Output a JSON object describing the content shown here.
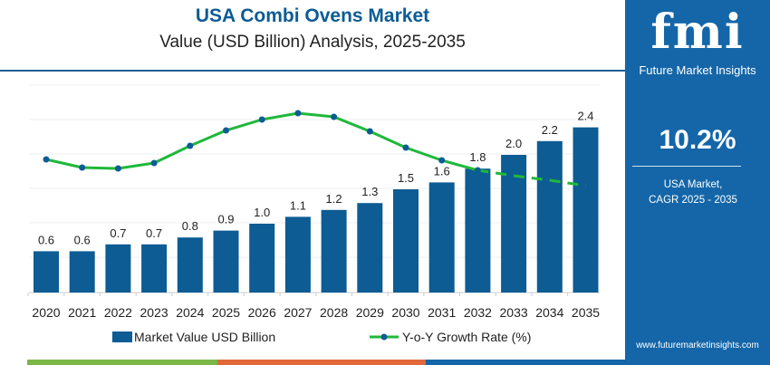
{
  "title": "USA Combi Ovens Market",
  "subtitle": "Value (USD Billion) Analysis, 2025-2035",
  "sidebar": {
    "logo_text": "fmi",
    "brand": "Future Market Insights",
    "cagr": "10.2%",
    "market_label": "USA Market,",
    "cagr_label": "CAGR 2025 - 2035",
    "url": "www.futuremarketinsights.com"
  },
  "colors": {
    "bar": "#0d5c94",
    "line": "#1fb83a",
    "marker": "#0d5c94",
    "sidebar": "#1466a8"
  },
  "chart_data": {
    "type": "bar",
    "categories": [
      "2020",
      "2021",
      "2022",
      "2023",
      "2024",
      "2025",
      "2026",
      "2027",
      "2028",
      "2029",
      "2030",
      "2031",
      "2032",
      "2033",
      "2034",
      "2035"
    ],
    "series": [
      {
        "name": "Market Value USD Billion",
        "type": "bar",
        "values": [
          0.6,
          0.6,
          0.7,
          0.7,
          0.8,
          0.9,
          1.0,
          1.1,
          1.2,
          1.3,
          1.5,
          1.6,
          1.8,
          2.0,
          2.2,
          2.4
        ],
        "labels": [
          "0.6",
          "0.6",
          "0.7",
          "0.7",
          "0.8",
          "0.9",
          "1.0",
          "1.1",
          "1.2",
          "1.3",
          "1.5",
          "1.6",
          "1.8",
          "2.0",
          "2.2",
          "2.4"
        ]
      },
      {
        "name": "Y-o-Y Growth Rate (%)",
        "type": "line",
        "values": [
          9.45,
          9.0,
          8.95,
          9.25,
          10.2,
          11.05,
          11.65,
          12.0,
          11.8,
          11.0,
          10.1,
          9.4,
          8.85,
          8.55,
          8.3,
          8.0
        ]
      }
    ],
    "ylim": [
      0,
      3.0
    ],
    "grid": true,
    "legend": "bottom"
  }
}
